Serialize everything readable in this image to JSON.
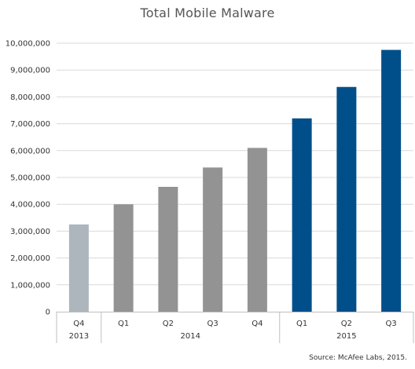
{
  "chart_data": {
    "type": "bar",
    "title": "Total Mobile Malware",
    "xlabel": "",
    "ylabel": "",
    "ylim": [
      0,
      10000000
    ],
    "yticks": [
      "0",
      "1,000,000",
      "2,000,000",
      "3,000,000",
      "4,000,000",
      "5,000,000",
      "6,000,000",
      "7,000,000",
      "8,000,000",
      "9,000,000",
      "10,000,000"
    ],
    "categories": [
      "Q4",
      "Q1",
      "Q2",
      "Q3",
      "Q4",
      "Q1",
      "Q2",
      "Q3"
    ],
    "groups": [
      {
        "label": "2013",
        "count": 1
      },
      {
        "label": "2014",
        "count": 4
      },
      {
        "label": "2015",
        "count": 3
      }
    ],
    "values": [
      3250000,
      4000000,
      4650000,
      5370000,
      6100000,
      7200000,
      8370000,
      9750000
    ],
    "colors": [
      "#adb6bd",
      "#939393",
      "#939393",
      "#939393",
      "#939393",
      "#004f8a",
      "#004f8a",
      "#004f8a"
    ],
    "grid": true,
    "source": "Source: McAfee Labs, 2015."
  }
}
